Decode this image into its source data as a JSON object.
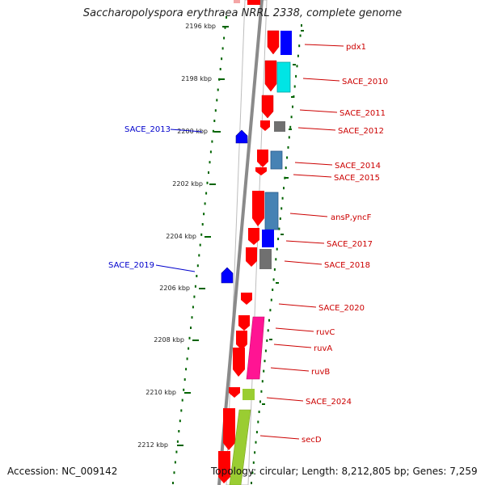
{
  "title": "Saccharopolyspora erythraea NRRL 2338, complete genome",
  "footer": {
    "accession": "Accession: NC_009142",
    "summary": "Topology: circular; Length: 8,212,805 bp; Genes: 7,259"
  },
  "ruler": {
    "ticks": [
      "2196 kbp",
      "2198 kbp",
      "2200 kbp",
      "2202 kbp",
      "2204 kbp",
      "2206 kbp",
      "2208 kbp",
      "2210 kbp",
      "2212 kbp"
    ]
  },
  "colors": {
    "red": "#ff0000",
    "blue": "#0000ff",
    "cyan": "#00e5e5",
    "steelblue": "#4682b4",
    "gray": "#707070",
    "magenta": "#ff1493",
    "lime": "#9acd32",
    "ruler_dots": "#006400",
    "label_red": "#cc0000",
    "label_blue": "#0000cc"
  },
  "genes": {
    "right": [
      {
        "label": "pdx1",
        "color": "blue"
      },
      {
        "label": "SACE_2010",
        "color": "cyan"
      },
      {
        "label": "SACE_2011",
        "color": "red"
      },
      {
        "label": "SACE_2012",
        "color": "gray"
      },
      {
        "label": "SACE_2014",
        "color": "steelblue"
      },
      {
        "label": "SACE_2015",
        "color": "red"
      },
      {
        "label": "ansP,yncF",
        "color": "steelblue"
      },
      {
        "label": "SACE_2017",
        "color": "blue"
      },
      {
        "label": "SACE_2018",
        "color": "gray"
      },
      {
        "label": "SACE_2020",
        "color": "red"
      },
      {
        "label": "ruvC",
        "color": "magenta"
      },
      {
        "label": "ruvA",
        "color": "magenta"
      },
      {
        "label": "ruvB",
        "color": "magenta"
      },
      {
        "label": "SACE_2024",
        "color": "lime"
      },
      {
        "label": "secD",
        "color": "lime"
      }
    ],
    "left": [
      {
        "label": "SACE_2013",
        "color": "blue"
      },
      {
        "label": "SACE_2019",
        "color": "blue"
      }
    ]
  }
}
